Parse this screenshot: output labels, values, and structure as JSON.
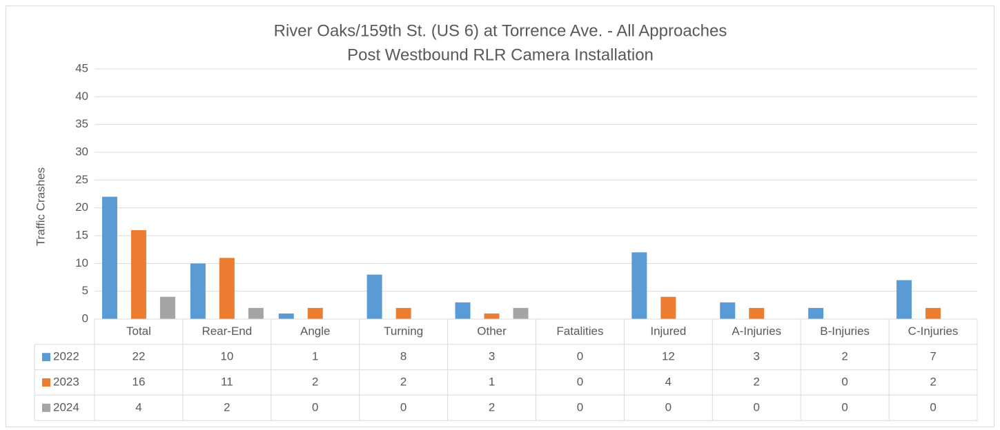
{
  "chart_data": {
    "type": "bar",
    "title": [
      "River Oaks/159th St. (US 6) at Torrence Ave. - All Approaches",
      "Post Westbound RLR Camera Installation"
    ],
    "y_label": "Traffic Crashes",
    "categories": [
      "Total",
      "Rear-End",
      "Angle",
      "Turning",
      "Other",
      "Fatalities",
      "Injured",
      "A-Injuries",
      "B-Injuries",
      "C-Injuries"
    ],
    "series": [
      {
        "name": "2022",
        "color": "#5b9bd5",
        "values": [
          22,
          10,
          1,
          8,
          3,
          0,
          12,
          3,
          2,
          7
        ]
      },
      {
        "name": "2023",
        "color": "#ed7d31",
        "values": [
          16,
          11,
          2,
          2,
          1,
          0,
          4,
          2,
          0,
          2
        ]
      },
      {
        "name": "2024",
        "color": "#a5a5a5",
        "values": [
          4,
          2,
          0,
          0,
          2,
          0,
          0,
          0,
          0,
          0
        ]
      }
    ],
    "ylim": [
      0,
      45
    ],
    "yticks": [
      0,
      5,
      10,
      15,
      20,
      25,
      30,
      35,
      40,
      45
    ],
    "grid": true,
    "data_table": true
  }
}
